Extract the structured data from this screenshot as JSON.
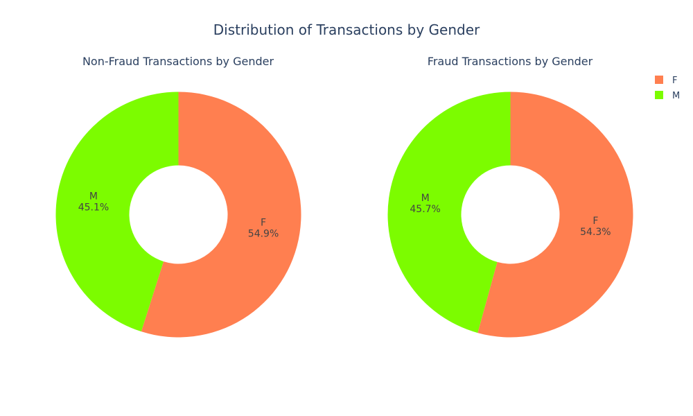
{
  "title": "Distribution of Transactions by Gender",
  "chart_data": [
    {
      "type": "pie",
      "hole": true,
      "title": "Non-Fraud Transactions by Gender",
      "slices": [
        {
          "label": "F",
          "value": 54.9,
          "text": "54.9%",
          "color": "#ff7f50"
        },
        {
          "label": "M",
          "value": 45.1,
          "text": "45.1%",
          "color": "#7cfc00"
        }
      ]
    },
    {
      "type": "pie",
      "hole": true,
      "title": "Fraud Transactions by Gender",
      "slices": [
        {
          "label": "F",
          "value": 54.3,
          "text": "54.3%",
          "color": "#ff7f50"
        },
        {
          "label": "M",
          "value": 45.7,
          "text": "45.7%",
          "color": "#7cfc00"
        }
      ]
    }
  ],
  "legend": {
    "placement": "top-right",
    "items": [
      {
        "label": "F",
        "color": "#ff7f50"
      },
      {
        "label": "M",
        "color": "#7cfc00"
      }
    ]
  }
}
